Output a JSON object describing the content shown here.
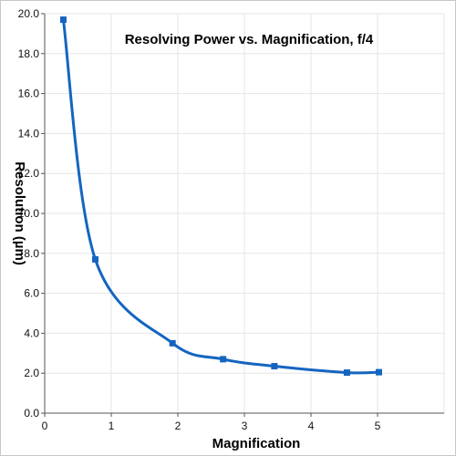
{
  "chart_data": {
    "type": "line",
    "title": "Resolving Power vs. Magnification, f/4",
    "xlabel": "Magnification",
    "ylabel": "Resolution (µm)",
    "xlim": [
      0,
      6
    ],
    "ylim": [
      0,
      20
    ],
    "x_ticks": [
      "0",
      "1",
      "2",
      "3",
      "4",
      "5"
    ],
    "y_ticks": [
      "0.0",
      "2.0",
      "4.0",
      "6.0",
      "8.0",
      "10.0",
      "12.0",
      "14.0",
      "16.0",
      "18.0",
      "20.0"
    ],
    "grid": true,
    "legend": "none",
    "series": [
      {
        "x": [
          0.28,
          0.76,
          1.92,
          2.68,
          3.45,
          4.54,
          5.02
        ],
        "y": [
          19.7,
          7.7,
          3.5,
          2.7,
          2.35,
          2.03,
          2.05
        ],
        "color": "#1565c0",
        "marker": "square",
        "smooth": true
      }
    ]
  }
}
